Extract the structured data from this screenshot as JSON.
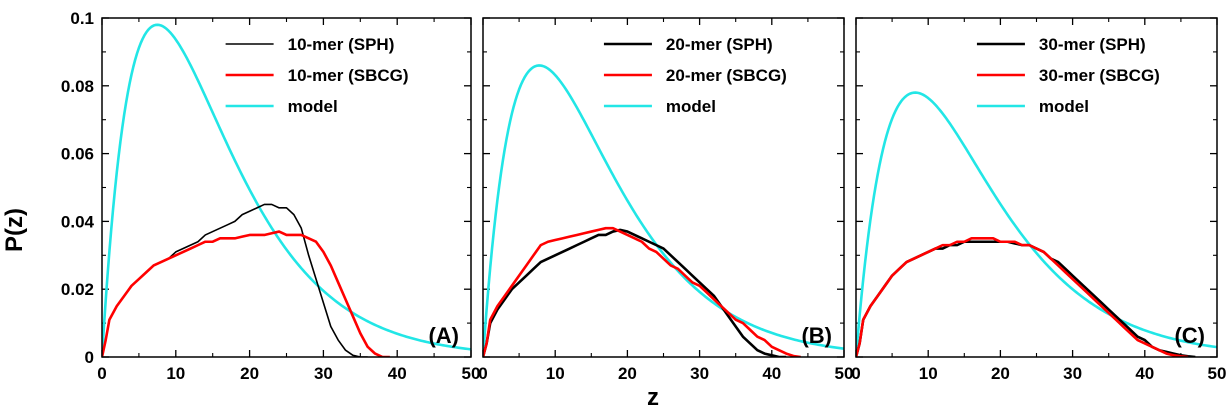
{
  "figure": {
    "ylabel": "P(z)",
    "xlabel": "z"
  },
  "chart_data": [
    {
      "type": "line",
      "panel_label": "(A)",
      "xlabel": "",
      "ylabel": "P(z)",
      "xlim": [
        0,
        50
      ],
      "ylim": [
        0,
        0.1
      ],
      "xticks": [
        "0",
        "10",
        "20",
        "30",
        "40",
        "50"
      ],
      "yticks": [
        "0",
        "0.02",
        "0.04",
        "0.06",
        "0.08",
        "0.1"
      ],
      "grid": false,
      "legend_position": "top-right",
      "series": [
        {
          "name": "10-mer (SPH)",
          "color": "#000000",
          "width": 1.6,
          "x": [
            0,
            0.5,
            1,
            2,
            3,
            4,
            5,
            6,
            7,
            8,
            9,
            10,
            11,
            12,
            13,
            14,
            15,
            16,
            17,
            18,
            19,
            20,
            21,
            22,
            23,
            24,
            25,
            26,
            27,
            28,
            29,
            30,
            31,
            32,
            33,
            34,
            35,
            36
          ],
          "y": [
            0,
            0.005,
            0.011,
            0.015,
            0.018,
            0.021,
            0.023,
            0.025,
            0.027,
            0.028,
            0.029,
            0.031,
            0.032,
            0.033,
            0.034,
            0.036,
            0.037,
            0.038,
            0.039,
            0.04,
            0.042,
            0.043,
            0.044,
            0.045,
            0.045,
            0.044,
            0.044,
            0.042,
            0.038,
            0.03,
            0.023,
            0.016,
            0.009,
            0.005,
            0.002,
            0.0005,
            0,
            0
          ]
        },
        {
          "name": "10-mer (SBCG)",
          "color": "#ff0000",
          "width": 2.6,
          "x": [
            0,
            0.5,
            1,
            2,
            3,
            4,
            5,
            6,
            7,
            8,
            9,
            10,
            11,
            12,
            13,
            14,
            15,
            16,
            17,
            18,
            19,
            20,
            21,
            22,
            23,
            24,
            25,
            26,
            27,
            28,
            29,
            30,
            31,
            32,
            33,
            34,
            35,
            36,
            37,
            38,
            39
          ],
          "y": [
            0,
            0.005,
            0.011,
            0.015,
            0.018,
            0.021,
            0.023,
            0.025,
            0.027,
            0.028,
            0.029,
            0.03,
            0.031,
            0.032,
            0.033,
            0.034,
            0.034,
            0.035,
            0.035,
            0.035,
            0.0355,
            0.036,
            0.036,
            0.036,
            0.0365,
            0.037,
            0.036,
            0.036,
            0.036,
            0.035,
            0.034,
            0.031,
            0.027,
            0.022,
            0.017,
            0.012,
            0.007,
            0.003,
            0.001,
            0,
            0
          ]
        },
        {
          "name": "model",
          "color": "#22e6e6",
          "width": 2.6,
          "generator": "model_peak",
          "peak_x": 7.5,
          "peak_y": 0.098
        }
      ]
    },
    {
      "type": "line",
      "panel_label": "(B)",
      "xlabel": "",
      "ylabel": "",
      "xlim": [
        0,
        50
      ],
      "ylim": [
        0,
        0.1
      ],
      "xticks": [
        "0",
        "10",
        "20",
        "30",
        "40",
        "50"
      ],
      "grid": false,
      "legend_position": "top-right",
      "series": [
        {
          "name": "20-mer (SPH)",
          "color": "#000000",
          "width": 2.6,
          "x": [
            0,
            0.5,
            1,
            2,
            3,
            4,
            5,
            6,
            7,
            8,
            9,
            10,
            11,
            12,
            13,
            14,
            15,
            16,
            17,
            18,
            19,
            20,
            21,
            22,
            23,
            24,
            25,
            26,
            27,
            28,
            29,
            30,
            31,
            32,
            33,
            34,
            35,
            36,
            37,
            38,
            39,
            40,
            41,
            42
          ],
          "y": [
            0,
            0.004,
            0.01,
            0.014,
            0.017,
            0.02,
            0.022,
            0.024,
            0.026,
            0.028,
            0.029,
            0.03,
            0.031,
            0.032,
            0.033,
            0.034,
            0.035,
            0.036,
            0.036,
            0.037,
            0.0375,
            0.037,
            0.036,
            0.035,
            0.034,
            0.033,
            0.032,
            0.03,
            0.028,
            0.026,
            0.024,
            0.022,
            0.02,
            0.018,
            0.015,
            0.012,
            0.009,
            0.006,
            0.004,
            0.002,
            0.001,
            0.0005,
            0,
            0
          ]
        },
        {
          "name": "20-mer (SBCG)",
          "color": "#ff0000",
          "width": 2.6,
          "x": [
            0,
            0.5,
            1,
            2,
            3,
            4,
            5,
            6,
            7,
            8,
            9,
            10,
            11,
            12,
            13,
            14,
            15,
            16,
            17,
            18,
            19,
            20,
            21,
            22,
            23,
            24,
            25,
            26,
            27,
            28,
            29,
            30,
            31,
            32,
            33,
            34,
            35,
            36,
            37,
            38,
            39,
            40,
            41,
            42,
            43,
            44
          ],
          "y": [
            0,
            0.004,
            0.011,
            0.015,
            0.018,
            0.021,
            0.024,
            0.027,
            0.03,
            0.033,
            0.034,
            0.0345,
            0.035,
            0.0355,
            0.036,
            0.0365,
            0.037,
            0.0375,
            0.038,
            0.038,
            0.037,
            0.036,
            0.035,
            0.034,
            0.032,
            0.031,
            0.029,
            0.027,
            0.026,
            0.024,
            0.022,
            0.021,
            0.019,
            0.017,
            0.015,
            0.013,
            0.011,
            0.01,
            0.008,
            0.006,
            0.005,
            0.003,
            0.002,
            0.001,
            0.0003,
            0
          ]
        },
        {
          "name": "model",
          "color": "#22e6e6",
          "width": 2.6,
          "generator": "model_peak",
          "peak_x": 7.8,
          "peak_y": 0.086
        }
      ]
    },
    {
      "type": "line",
      "panel_label": "(C)",
      "xlabel": "",
      "ylabel": "",
      "xlim": [
        0,
        50
      ],
      "ylim": [
        0,
        0.1
      ],
      "xticks": [
        "0",
        "10",
        "20",
        "30",
        "40",
        "50"
      ],
      "grid": false,
      "legend_position": "top-right",
      "series": [
        {
          "name": "30-mer (SPH)",
          "color": "#000000",
          "width": 2.6,
          "x": [
            0,
            0.5,
            1,
            2,
            3,
            4,
            5,
            6,
            7,
            8,
            9,
            10,
            11,
            12,
            13,
            14,
            15,
            16,
            17,
            18,
            19,
            20,
            21,
            22,
            23,
            24,
            25,
            26,
            27,
            28,
            29,
            30,
            31,
            32,
            33,
            34,
            35,
            36,
            37,
            38,
            39,
            40,
            41,
            42,
            43,
            44,
            45,
            46,
            47
          ],
          "y": [
            0,
            0.004,
            0.011,
            0.015,
            0.018,
            0.021,
            0.024,
            0.026,
            0.028,
            0.029,
            0.03,
            0.031,
            0.032,
            0.032,
            0.033,
            0.033,
            0.034,
            0.034,
            0.034,
            0.034,
            0.034,
            0.034,
            0.034,
            0.0335,
            0.033,
            0.033,
            0.032,
            0.031,
            0.029,
            0.028,
            0.026,
            0.024,
            0.022,
            0.02,
            0.018,
            0.016,
            0.014,
            0.012,
            0.01,
            0.008,
            0.006,
            0.005,
            0.003,
            0.002,
            0.0015,
            0.001,
            0.0005,
            0.0002,
            0
          ]
        },
        {
          "name": "30-mer (SBCG)",
          "color": "#ff0000",
          "width": 2.6,
          "x": [
            0,
            0.5,
            1,
            2,
            3,
            4,
            5,
            6,
            7,
            8,
            9,
            10,
            11,
            12,
            13,
            14,
            15,
            16,
            17,
            18,
            19,
            20,
            21,
            22,
            23,
            24,
            25,
            26,
            27,
            28,
            29,
            30,
            31,
            32,
            33,
            34,
            35,
            36,
            37,
            38,
            39,
            40,
            41,
            42,
            43,
            44,
            45,
            46
          ],
          "y": [
            0,
            0.004,
            0.011,
            0.015,
            0.018,
            0.021,
            0.024,
            0.026,
            0.028,
            0.029,
            0.03,
            0.031,
            0.032,
            0.033,
            0.033,
            0.034,
            0.034,
            0.035,
            0.035,
            0.035,
            0.035,
            0.034,
            0.034,
            0.034,
            0.033,
            0.033,
            0.032,
            0.031,
            0.029,
            0.027,
            0.025,
            0.023,
            0.021,
            0.019,
            0.017,
            0.015,
            0.013,
            0.011,
            0.009,
            0.007,
            0.005,
            0.004,
            0.003,
            0.002,
            0.001,
            0.0005,
            0.0002,
            0
          ]
        },
        {
          "name": "model",
          "color": "#22e6e6",
          "width": 2.6,
          "generator": "model_peak",
          "peak_x": 8.2,
          "peak_y": 0.078
        }
      ]
    }
  ]
}
